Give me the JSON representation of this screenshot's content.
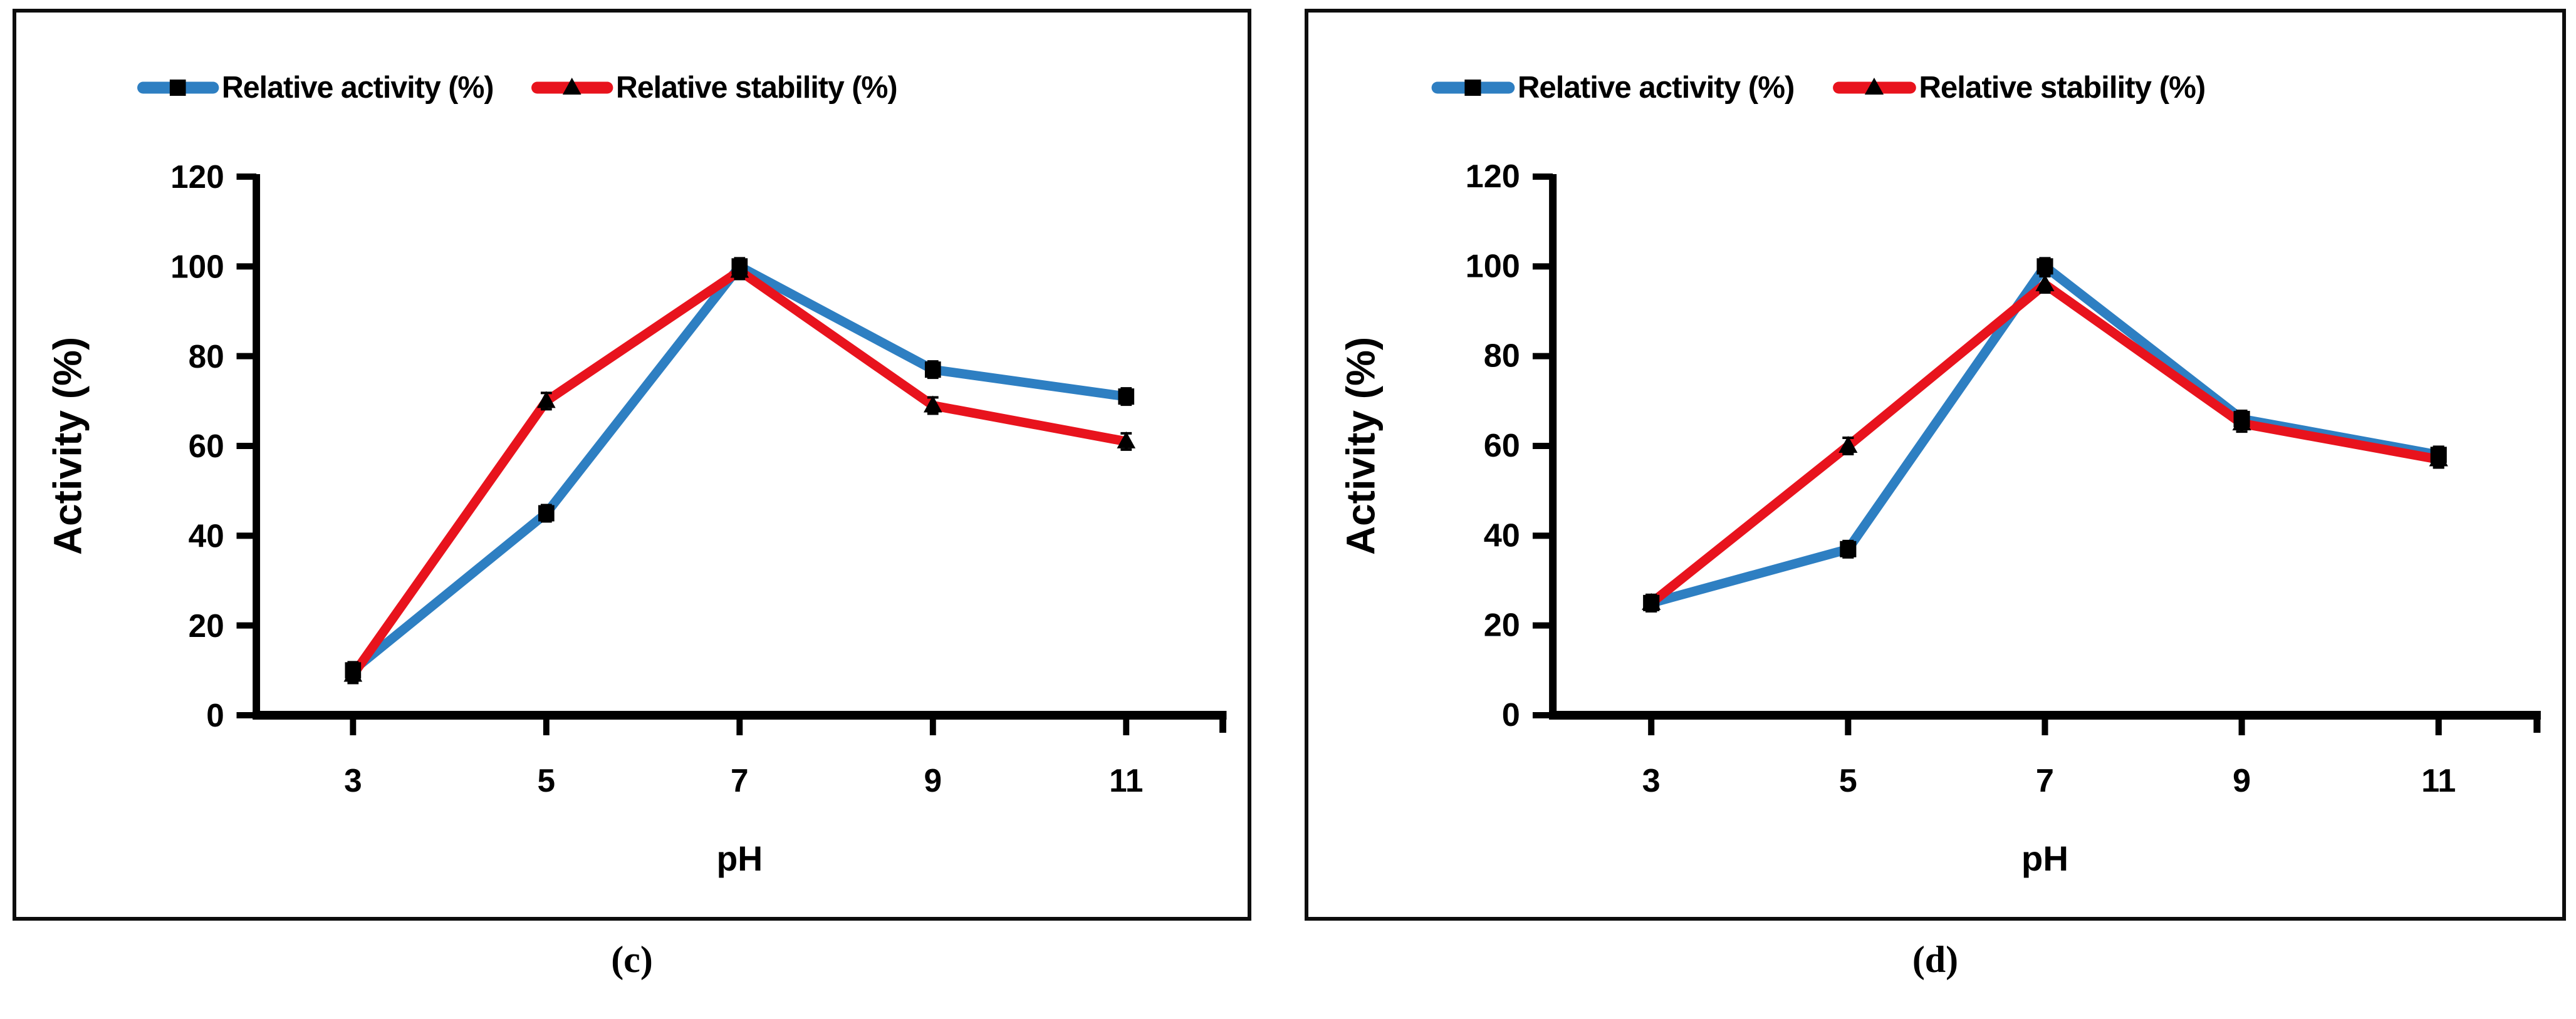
{
  "styles": {
    "background": "#ffffff",
    "panel_border": "#0d0d0d",
    "axis_color": "#000000",
    "text_color": "#000000",
    "activity_blue": "#2e7fc2",
    "stability_red": "#e8131d",
    "marker_black": "#000000"
  },
  "chart_data": [
    {
      "id": "c",
      "type": "line",
      "caption": "(c)",
      "xlabel": "pH",
      "ylabel": "Activity (%)",
      "xlim": [
        2,
        12
      ],
      "ylim": [
        0,
        120
      ],
      "xticks": [
        3,
        5,
        7,
        9,
        11
      ],
      "yticks": [
        0,
        20,
        40,
        60,
        80,
        100,
        120
      ],
      "grid": false,
      "legend_position": "top",
      "x": [
        3,
        5,
        7,
        9,
        11
      ],
      "series": [
        {
          "name": "Relative activity (%)",
          "color": "#2e7fc2",
          "marker": "square",
          "marker_color": "#000000",
          "values": [
            10,
            45,
            100,
            77,
            71
          ]
        },
        {
          "name": "Relative stability (%)",
          "color": "#e8131d",
          "marker": "triangle",
          "marker_color": "#000000",
          "values": [
            9,
            70,
            99,
            69,
            61
          ]
        }
      ]
    },
    {
      "id": "d",
      "type": "line",
      "caption": "(d)",
      "xlabel": "pH",
      "ylabel": "Activity (%)",
      "xlim": [
        2,
        12
      ],
      "ylim": [
        0,
        120
      ],
      "xticks": [
        3,
        5,
        7,
        9,
        11
      ],
      "yticks": [
        0,
        20,
        40,
        60,
        80,
        100,
        120
      ],
      "grid": false,
      "legend_position": "top",
      "x": [
        3,
        5,
        7,
        9,
        11
      ],
      "series": [
        {
          "name": "Relative activity (%)",
          "color": "#2e7fc2",
          "marker": "square",
          "marker_color": "#000000",
          "values": [
            25,
            37,
            100,
            66,
            58
          ]
        },
        {
          "name": "Relative stability (%)",
          "color": "#e8131d",
          "marker": "triangle",
          "marker_color": "#000000",
          "values": [
            25,
            60,
            96,
            65,
            57
          ]
        }
      ]
    }
  ]
}
